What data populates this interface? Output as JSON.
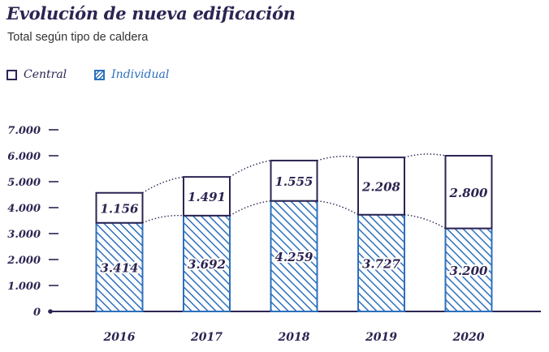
{
  "title": "Evolución de nueva edificación",
  "subtitle": "Total según tipo de caldera",
  "legend": {
    "central": "Central",
    "individual": "Individual"
  },
  "colors": {
    "navy": "#2c2452",
    "blue": "#2d6fbd",
    "grid": "#2c2452"
  },
  "chart_data": {
    "type": "bar",
    "stacked": true,
    "title": "Evolución de nueva edificación",
    "subtitle": "Total según tipo de caldera",
    "categories": [
      "2016",
      "2017",
      "2018",
      "2019",
      "2020"
    ],
    "series": [
      {
        "name": "Individual",
        "values": [
          3414,
          3692,
          4259,
          3727,
          3200
        ],
        "labels": [
          "3.414",
          "3.692",
          "4.259",
          "3.727",
          "3.200"
        ]
      },
      {
        "name": "Central",
        "values": [
          1156,
          1491,
          1555,
          2208,
          2800
        ],
        "labels": [
          "1.156",
          "1.491",
          "1.555",
          "2.208",
          "2.800"
        ]
      }
    ],
    "yticks": [
      0,
      1000,
      2000,
      3000,
      4000,
      5000,
      6000,
      7000
    ],
    "ytick_labels": [
      "0",
      "1.000",
      "2.000",
      "3.000",
      "4.000",
      "5.000",
      "6.000",
      "7.000"
    ],
    "ylim": [
      0,
      7000
    ],
    "xlabel": "",
    "ylabel": "",
    "legend_position": "top-left"
  }
}
